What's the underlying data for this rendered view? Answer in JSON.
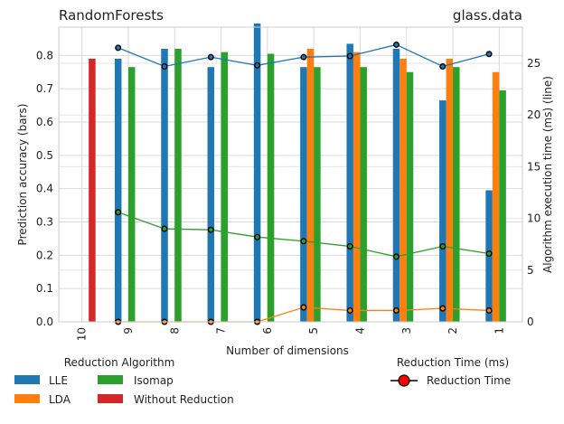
{
  "chart_data": {
    "type": "bar",
    "title_left": "RandomForests",
    "title_right": "glass.data",
    "xlabel": "Number of dimensions",
    "ylabel_left": "Prediction accuracy (bars)",
    "ylabel_right": "Algorithm execution time (ms) (line)",
    "categories": [
      "10",
      "9",
      "8",
      "7",
      "6",
      "5",
      "4",
      "3",
      "2",
      "1"
    ],
    "ylim_left": [
      0,
      0.885
    ],
    "ylim_right": [
      0,
      28.5
    ],
    "yticks_left": [
      "0.0",
      "0.1",
      "0.2",
      "0.3",
      "0.4",
      "0.5",
      "0.6",
      "0.7",
      "0.8"
    ],
    "yticks_right": [
      "0",
      "5",
      "10",
      "15",
      "20",
      "25"
    ],
    "grid": true,
    "bar_series": [
      {
        "name": "LLE",
        "color": "#1f77b4",
        "values": [
          null,
          0.79,
          0.82,
          0.765,
          0.9,
          0.765,
          0.835,
          0.82,
          0.665,
          0.395
        ]
      },
      {
        "name": "LDA",
        "color": "#ff7f0e",
        "values": [
          null,
          null,
          null,
          null,
          null,
          0.82,
          0.81,
          0.79,
          0.79,
          0.75
        ]
      },
      {
        "name": "Isomap",
        "color": "#2ca02c",
        "values": [
          null,
          0.765,
          0.82,
          0.81,
          0.805,
          0.765,
          0.765,
          0.75,
          0.765,
          0.695
        ]
      },
      {
        "name": "Without Reduction",
        "color": "#d62728",
        "values": [
          0.79,
          null,
          null,
          null,
          null,
          null,
          null,
          null,
          null,
          null
        ]
      }
    ],
    "line_series": [
      {
        "color": "#1f77b4",
        "values": [
          null,
          26.5,
          24.7,
          25.6,
          24.8,
          25.6,
          25.7,
          26.8,
          24.7,
          25.9
        ]
      },
      {
        "color": "#ff7f0e",
        "values": [
          null,
          0.0,
          0.0,
          0.0,
          0.0,
          1.4,
          1.1,
          1.1,
          1.3,
          1.1
        ]
      },
      {
        "color": "#2ca02c",
        "values": [
          null,
          10.6,
          9.0,
          8.9,
          8.2,
          7.8,
          7.3,
          6.3,
          7.3,
          6.6
        ]
      }
    ],
    "legend_bars_title": "Reduction Algorithm",
    "legend_bars": [
      "LLE",
      "LDA",
      "Isomap",
      "Without Reduction"
    ],
    "legend_line_title": "Reduction Time (ms)",
    "legend_line_label": "Reduction Time"
  }
}
